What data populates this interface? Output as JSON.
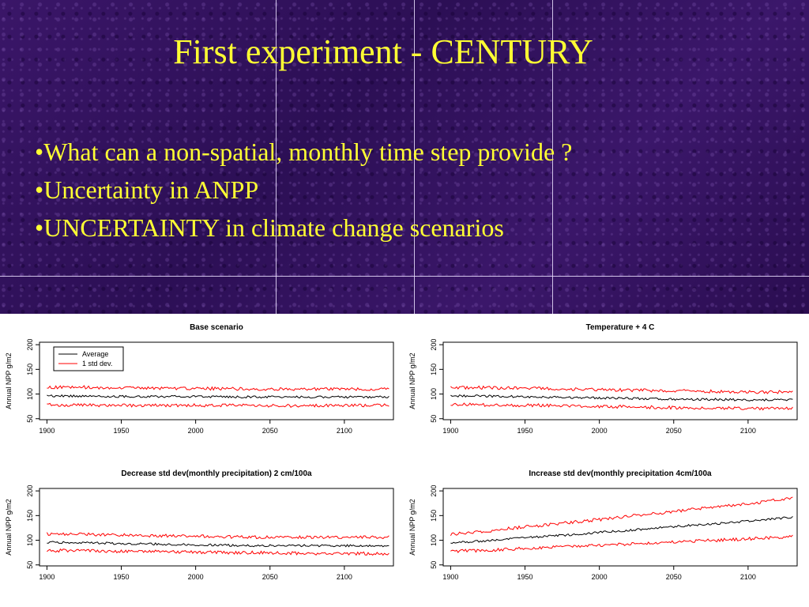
{
  "slide": {
    "title": "First experiment - CENTURY",
    "bullets": [
      "What can a non-spatial, monthly time step provide ?",
      "Uncertainty in ANPP",
      "UNCERTAINTY in climate change scenarios"
    ]
  },
  "colors": {
    "banner": "#2f1260",
    "title_text": "#ffff33",
    "average_line": "#000000",
    "std_line": "#ff0000"
  },
  "chart_data": [
    {
      "type": "line",
      "title": "Base scenario",
      "xlabel": "",
      "ylabel": "Annual NPP g/m2",
      "xlim": [
        1895,
        2133
      ],
      "ylim": [
        48,
        205
      ],
      "xticks": [
        1900,
        1950,
        2000,
        2050,
        2100
      ],
      "yticks": [
        50,
        100,
        150,
        200
      ],
      "legend": {
        "placement": "top-left",
        "entries": [
          "Average",
          "1 std dev."
        ]
      },
      "x": [
        1900,
        1920,
        1940,
        1960,
        1980,
        2000,
        2020,
        2040,
        2060,
        2080,
        2100,
        2120,
        2130
      ],
      "series": [
        {
          "name": "Average",
          "values": [
            96,
            96,
            95,
            95,
            95,
            95,
            94,
            94,
            94,
            94,
            94,
            94,
            94
          ]
        },
        {
          "name": "1 std dev.",
          "values": [
            113,
            114,
            113,
            112,
            112,
            111,
            111,
            110,
            110,
            110,
            110,
            110,
            110
          ]
        },
        {
          "name": "1 std dev.",
          "values": [
            78,
            78,
            77,
            77,
            77,
            77,
            77,
            77,
            76,
            77,
            77,
            77,
            77
          ]
        }
      ]
    },
    {
      "type": "line",
      "title": "Temperature + 4 C",
      "xlabel": "",
      "ylabel": "Annual NPP g/m2",
      "xlim": [
        1895,
        2133
      ],
      "ylim": [
        48,
        205
      ],
      "xticks": [
        1900,
        1950,
        2000,
        2050,
        2100
      ],
      "yticks": [
        50,
        100,
        150,
        200
      ],
      "x": [
        1900,
        1920,
        1940,
        1960,
        1980,
        2000,
        2020,
        2040,
        2060,
        2080,
        2100,
        2120,
        2130
      ],
      "series": [
        {
          "name": "Average",
          "values": [
            96,
            96,
            95,
            94,
            93,
            92,
            91,
            90,
            89,
            89,
            88,
            88,
            88
          ]
        },
        {
          "name": "1 std dev.",
          "values": [
            113,
            113,
            112,
            111,
            110,
            109,
            108,
            107,
            106,
            105,
            104,
            104,
            104
          ]
        },
        {
          "name": "1 std dev.",
          "values": [
            79,
            78,
            77,
            77,
            76,
            75,
            74,
            73,
            72,
            72,
            71,
            71,
            71
          ]
        }
      ]
    },
    {
      "type": "line",
      "title": "Decrease std dev(monthly precipitation) 2 cm/100a",
      "xlabel": "",
      "ylabel": "Annual NPP g/m2",
      "xlim": [
        1895,
        2133
      ],
      "ylim": [
        48,
        205
      ],
      "xticks": [
        1900,
        1950,
        2000,
        2050,
        2100
      ],
      "yticks": [
        50,
        100,
        150,
        200
      ],
      "x": [
        1900,
        1920,
        1940,
        1960,
        1980,
        2000,
        2020,
        2040,
        2060,
        2080,
        2100,
        2120,
        2130
      ],
      "series": [
        {
          "name": "Average",
          "values": [
            96,
            95,
            94,
            93,
            92,
            91,
            90,
            89,
            89,
            89,
            89,
            89,
            89
          ]
        },
        {
          "name": "1 std dev.",
          "values": [
            113,
            112,
            111,
            110,
            109,
            108,
            107,
            106,
            106,
            106,
            106,
            106,
            106
          ]
        },
        {
          "name": "1 std dev.",
          "values": [
            79,
            79,
            78,
            77,
            77,
            76,
            75,
            75,
            74,
            73,
            73,
            73,
            73
          ]
        }
      ]
    },
    {
      "type": "line",
      "title": "Increase std dev(monthly precipitation 4cm/100a",
      "xlabel": "",
      "ylabel": "Annual NPP g/m2",
      "xlim": [
        1895,
        2133
      ],
      "ylim": [
        48,
        205
      ],
      "xticks": [
        1900,
        1950,
        2000,
        2050,
        2100
      ],
      "yticks": [
        50,
        100,
        150,
        200
      ],
      "x": [
        1900,
        1920,
        1940,
        1960,
        1980,
        2000,
        2020,
        2040,
        2060,
        2080,
        2100,
        2120,
        2130
      ],
      "series": [
        {
          "name": "Average",
          "values": [
            95,
            98,
            103,
            107,
            111,
            116,
            120,
            125,
            130,
            134,
            139,
            144,
            147
          ]
        },
        {
          "name": "1 std dev.",
          "values": [
            112,
            117,
            124,
            130,
            136,
            142,
            149,
            155,
            162,
            168,
            174,
            182,
            186
          ]
        },
        {
          "name": "1 std dev.",
          "values": [
            78,
            79,
            82,
            85,
            87,
            90,
            92,
            95,
            98,
            100,
            103,
            106,
            108
          ]
        }
      ]
    }
  ]
}
